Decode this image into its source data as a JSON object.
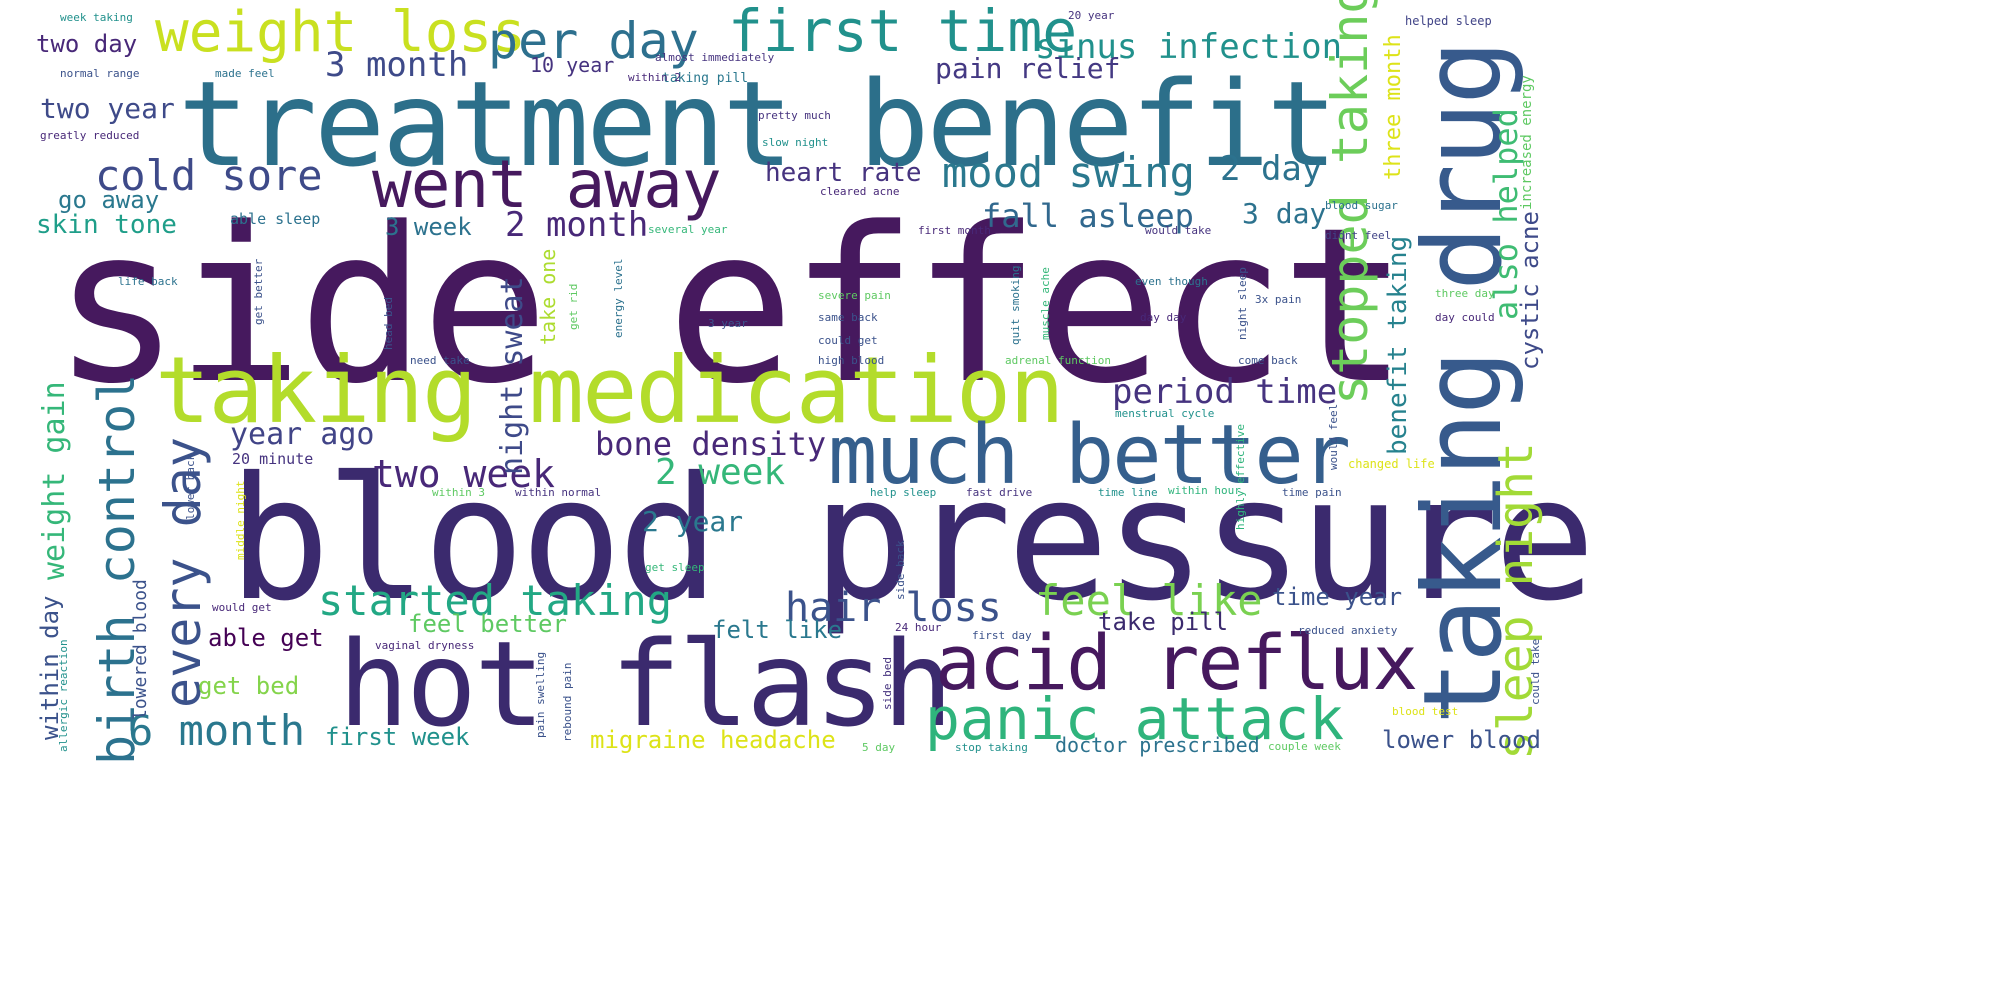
{
  "words": [
    {
      "text": "side effect",
      "color": "#46195e"
    },
    {
      "text": "blood pressure",
      "color": "#3b2a6e"
    },
    {
      "text": "treatment benefit",
      "color": "#2c6f8a"
    },
    {
      "text": "taking drug",
      "color": "#375a8c"
    },
    {
      "text": "taking medication",
      "color": "#b3dc2b"
    },
    {
      "text": "hot flash",
      "color": "#3b2a6e"
    },
    {
      "text": "much better",
      "color": "#355f8d"
    },
    {
      "text": "acid reflux",
      "color": "#46195e"
    },
    {
      "text": "went away",
      "color": "#46195e"
    },
    {
      "text": "weight loss",
      "color": "#c9e020"
    },
    {
      "text": "first time",
      "color": "#21918c"
    },
    {
      "text": "per day",
      "color": "#2d708e"
    },
    {
      "text": "panic attack",
      "color": "#2fb47c"
    },
    {
      "text": "birth control",
      "color": "#2c728e"
    },
    {
      "text": "every day",
      "color": "#3b528b"
    },
    {
      "text": "stopped taking",
      "color": "#6ccd5a"
    },
    {
      "text": "sleep night",
      "color": "#a2da37"
    },
    {
      "text": "mood swing",
      "color": "#2a788e"
    },
    {
      "text": "cold sore",
      "color": "#3e4a89"
    },
    {
      "text": "started taking",
      "color": "#22a884"
    },
    {
      "text": "feel like",
      "color": "#7ad151"
    },
    {
      "text": "6 month",
      "color": "#2a788e"
    },
    {
      "text": "hair loss",
      "color": "#3b528b"
    },
    {
      "text": "two week",
      "color": "#482878"
    },
    {
      "text": "2 week",
      "color": "#35b779"
    },
    {
      "text": "bone density",
      "color": "#482878"
    },
    {
      "text": "2 month",
      "color": "#482878"
    },
    {
      "text": "sinus infection",
      "color": "#21918c"
    },
    {
      "text": "3 month",
      "color": "#3e4a89"
    },
    {
      "text": "2 day",
      "color": "#2c728e"
    },
    {
      "text": "period time",
      "color": "#46337f"
    },
    {
      "text": "fall asleep",
      "color": "#31688e"
    },
    {
      "text": "also helped",
      "color": "#3fbc73"
    },
    {
      "text": "year ago",
      "color": "#414487"
    },
    {
      "text": "night sweat",
      "color": "#3e4a89"
    },
    {
      "text": "weight gain",
      "color": "#35b779"
    },
    {
      "text": "pain relief",
      "color": "#443983"
    },
    {
      "text": "heart rate",
      "color": "#46337f"
    },
    {
      "text": "3 day",
      "color": "#2c728e"
    },
    {
      "text": "benefit taking",
      "color": "#26828e"
    },
    {
      "text": "cystic acne",
      "color": "#3e4a89"
    },
    {
      "text": "three month",
      "color": "#dde318"
    },
    {
      "text": "two year",
      "color": "#3e4a89"
    },
    {
      "text": "two day",
      "color": "#482878"
    },
    {
      "text": "go away",
      "color": "#2a788e"
    },
    {
      "text": "skin tone",
      "color": "#1f9e89"
    },
    {
      "text": "3 week",
      "color": "#2c728e"
    },
    {
      "text": "2 year",
      "color": "#2a788e"
    },
    {
      "text": "within day",
      "color": "#3b528b"
    },
    {
      "text": "take one",
      "color": "#addc30"
    },
    {
      "text": "feel better",
      "color": "#5ec962"
    },
    {
      "text": "able get",
      "color": "#440154"
    },
    {
      "text": "get bed",
      "color": "#84d44b"
    },
    {
      "text": "felt like",
      "color": "#2a788e"
    },
    {
      "text": "take pill",
      "color": "#3b2a6e"
    },
    {
      "text": "time year",
      "color": "#3b528b"
    },
    {
      "text": "first week",
      "color": "#21918c"
    },
    {
      "text": "migraine headache",
      "color": "#dde318"
    },
    {
      "text": "lower blood",
      "color": "#3b528b"
    },
    {
      "text": "doctor prescribed",
      "color": "#2c728e"
    },
    {
      "text": "10 year",
      "color": "#46337f"
    },
    {
      "text": "increased energy",
      "color": "#5ec962"
    },
    {
      "text": "lowered blood",
      "color": "#3b528b"
    },
    {
      "text": "helped sleep",
      "color": "#414487"
    },
    {
      "text": "almost immediately",
      "color": "#46337f"
    },
    {
      "text": "taking pill",
      "color": "#2a788e"
    },
    {
      "text": "normal range",
      "color": "#3b528b"
    },
    {
      "text": "made feel",
      "color": "#2c728e"
    },
    {
      "text": "within 2",
      "color": "#482878"
    },
    {
      "text": "greatly reduced",
      "color": "#482878"
    },
    {
      "text": "pretty much",
      "color": "#46337f"
    },
    {
      "text": "slow night",
      "color": "#21918c"
    },
    {
      "text": "cleared acne",
      "color": "#482878"
    },
    {
      "text": "blood sugar",
      "color": "#2c728e"
    },
    {
      "text": "able sleep",
      "color": "#2c728e"
    },
    {
      "text": "several year",
      "color": "#35b779"
    },
    {
      "text": "first month",
      "color": "#482878"
    },
    {
      "text": "would take",
      "color": "#46337f"
    },
    {
      "text": "didnt feel",
      "color": "#414487"
    },
    {
      "text": "20 minute",
      "color": "#46337f"
    },
    {
      "text": "changed life",
      "color": "#dde318"
    },
    {
      "text": "menstrual cycle",
      "color": "#21918c"
    },
    {
      "text": "within hour",
      "color": "#2fb47c"
    },
    {
      "text": "vaginal dryness",
      "color": "#482878"
    },
    {
      "text": "reduced anxiety",
      "color": "#3b528b"
    },
    {
      "text": "first day",
      "color": "#3b528b"
    },
    {
      "text": "24 hour",
      "color": "#482878"
    },
    {
      "text": "would get",
      "color": "#482878"
    },
    {
      "text": "blood test",
      "color": "#dde318"
    },
    {
      "text": "couple week",
      "color": "#5ec962"
    },
    {
      "text": "stop taking",
      "color": "#21918c"
    },
    {
      "text": "week taking",
      "color": "#21918c"
    },
    {
      "text": "20 year",
      "color": "#46337f"
    },
    {
      "text": "severe pain",
      "color": "#5ec962"
    },
    {
      "text": "same back",
      "color": "#3b528b"
    },
    {
      "text": "high blood",
      "color": "#3b528b"
    },
    {
      "text": "could get",
      "color": "#3b528b"
    },
    {
      "text": "even though",
      "color": "#2c728e"
    },
    {
      "text": "day day",
      "color": "#482878"
    },
    {
      "text": "day could",
      "color": "#482878"
    },
    {
      "text": "three day",
      "color": "#5ec962"
    },
    {
      "text": "3x pain",
      "color": "#3b528b"
    },
    {
      "text": "life back",
      "color": "#2c728e"
    },
    {
      "text": "3 year",
      "color": "#3b528b"
    },
    {
      "text": "energy level",
      "color": "#2c728e"
    },
    {
      "text": "get rid",
      "color": "#5ec962"
    },
    {
      "text": "adrenal function",
      "color": "#5ec962"
    },
    {
      "text": "need take",
      "color": "#3b528b"
    },
    {
      "text": "come back",
      "color": "#3b528b"
    },
    {
      "text": "help sleep",
      "color": "#21918c"
    },
    {
      "text": "fast drive",
      "color": "#46337f"
    },
    {
      "text": "time line",
      "color": "#21918c"
    },
    {
      "text": "time pain",
      "color": "#3b528b"
    },
    {
      "text": "get sleep",
      "color": "#35b779"
    },
    {
      "text": "within normal",
      "color": "#46337f"
    },
    {
      "text": "within 3",
      "color": "#5ec962"
    },
    {
      "text": "5 day",
      "color": "#5ec962"
    },
    {
      "text": "pain swelling",
      "color": "#3b528b"
    },
    {
      "text": "rebound pain",
      "color": "#3b528b"
    },
    {
      "text": "allergic reaction",
      "color": "#21918c"
    },
    {
      "text": "middle night",
      "color": "#dde318"
    },
    {
      "text": "lower back",
      "color": "#3b528b"
    },
    {
      "text": "highly effective",
      "color": "#2fb47c"
    },
    {
      "text": "get better",
      "color": "#3b528b"
    },
    {
      "text": "head bed",
      "color": "#3b528b"
    },
    {
      "text": "side back",
      "color": "#3b528b"
    },
    {
      "text": "night sleep",
      "color": "#3b528b"
    },
    {
      "text": "could take",
      "color": "#3b528b"
    },
    {
      "text": "quit smoking",
      "color": "#2c728e"
    },
    {
      "text": "muscle ache",
      "color": "#35b779"
    },
    {
      "text": "side bed",
      "color": "#46337f"
    },
    {
      "text": "would feel",
      "color": "#3b528b"
    }
  ]
}
